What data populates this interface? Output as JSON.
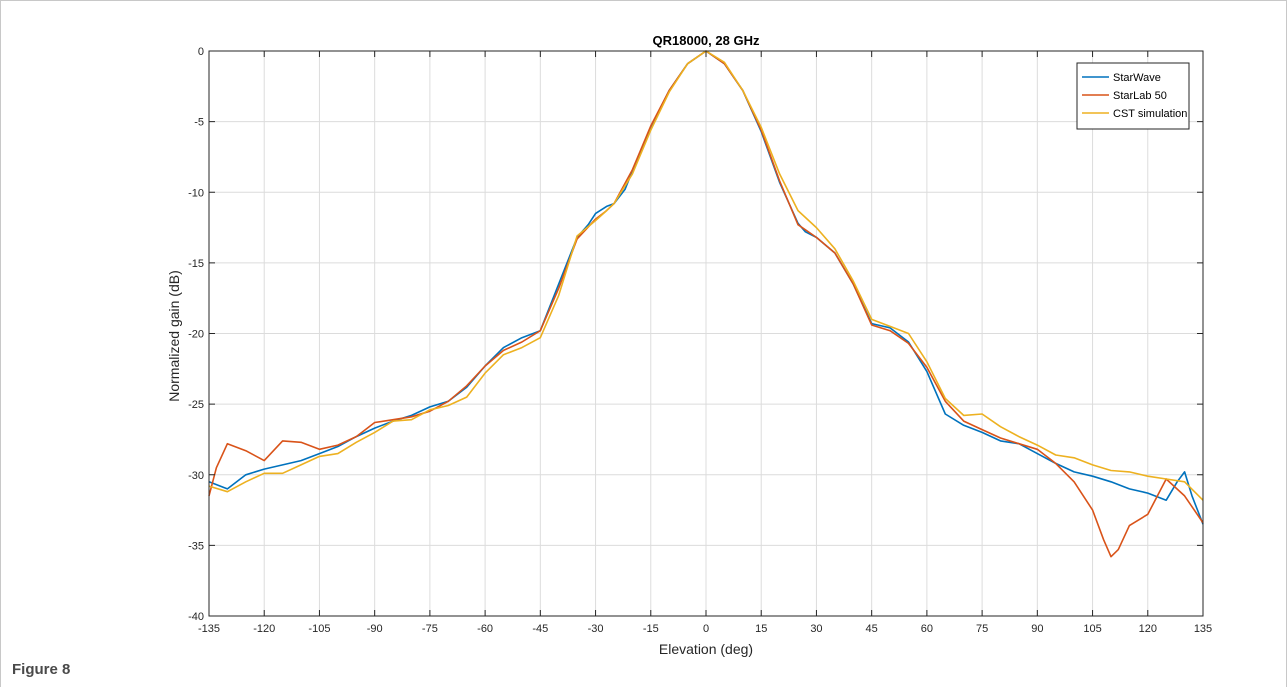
{
  "caption": "Figure 8",
  "chart_data": {
    "type": "line",
    "title": "QR18000, 28 GHz",
    "xlabel": "Elevation (deg)",
    "ylabel": "Normalized gain (dB)",
    "xlim": [
      -135,
      135
    ],
    "ylim": [
      -40,
      0
    ],
    "xticks": [
      -135,
      -120,
      -105,
      -90,
      -75,
      -60,
      -45,
      -30,
      -15,
      0,
      15,
      30,
      45,
      60,
      75,
      90,
      105,
      120,
      135
    ],
    "yticks": [
      0,
      -5,
      -10,
      -15,
      -20,
      -25,
      -30,
      -35,
      -40
    ],
    "grid": true,
    "legend_position": "top-right",
    "series": [
      {
        "name": "StarWave",
        "color": "#0072BD",
        "x": [
          -135,
          -130,
          -125,
          -120,
          -115,
          -110,
          -105,
          -100,
          -95,
          -90,
          -85,
          -80,
          -75,
          -70,
          -65,
          -60,
          -55,
          -50,
          -45,
          -40,
          -35,
          -32,
          -30,
          -27,
          -25,
          -22,
          -20,
          -15,
          -10,
          -5,
          0,
          5,
          10,
          15,
          20,
          25,
          27,
          30,
          35,
          40,
          45,
          50,
          55,
          60,
          65,
          70,
          75,
          80,
          85,
          90,
          95,
          100,
          105,
          110,
          115,
          120,
          125,
          128,
          130,
          132,
          135
        ],
        "y": [
          -30.5,
          -31,
          -30,
          -29.6,
          -29.3,
          -29,
          -28.5,
          -28,
          -27.3,
          -26.7,
          -26.2,
          -25.8,
          -25.2,
          -24.8,
          -23.8,
          -22.3,
          -21,
          -20.3,
          -19.8,
          -16.5,
          -13.2,
          -12.3,
          -11.5,
          -11,
          -10.8,
          -9.8,
          -8.5,
          -5.4,
          -2.8,
          -0.9,
          0,
          -0.9,
          -2.8,
          -5.7,
          -9.3,
          -12.2,
          -12.8,
          -13.2,
          -14.3,
          -16.5,
          -19.3,
          -19.6,
          -20.6,
          -22.7,
          -25.7,
          -26.5,
          -27,
          -27.6,
          -27.8,
          -28.5,
          -29.2,
          -29.8,
          -30.1,
          -30.5,
          -31,
          -31.3,
          -31.8,
          -30.5,
          -29.8,
          -31.5,
          -33.5
        ]
      },
      {
        "name": "StarLab 50",
        "color": "#D95319",
        "x": [
          -135,
          -133,
          -130,
          -125,
          -120,
          -115,
          -110,
          -105,
          -100,
          -95,
          -90,
          -85,
          -80,
          -75,
          -70,
          -65,
          -60,
          -55,
          -50,
          -45,
          -40,
          -35,
          -30,
          -27,
          -25,
          -20,
          -15,
          -10,
          -5,
          0,
          5,
          10,
          15,
          20,
          25,
          30,
          35,
          40,
          45,
          50,
          55,
          60,
          65,
          70,
          75,
          80,
          85,
          90,
          95,
          100,
          105,
          108,
          110,
          112,
          115,
          120,
          125,
          130,
          135
        ],
        "y": [
          -31.5,
          -29.5,
          -27.8,
          -28.3,
          -29,
          -27.6,
          -27.7,
          -28.2,
          -27.9,
          -27.3,
          -26.3,
          -26.1,
          -25.9,
          -25.5,
          -24.8,
          -23.7,
          -22.3,
          -21.2,
          -20.6,
          -19.8,
          -16.8,
          -13.3,
          -11.9,
          -11.3,
          -10.8,
          -8.4,
          -5.3,
          -2.8,
          -0.9,
          0,
          -0.9,
          -2.8,
          -5.6,
          -9.2,
          -12.3,
          -13.2,
          -14.3,
          -16.5,
          -19.4,
          -19.8,
          -20.7,
          -22.4,
          -24.8,
          -26.2,
          -26.8,
          -27.4,
          -27.8,
          -28.2,
          -29.2,
          -30.5,
          -32.5,
          -34.6,
          -35.8,
          -35.3,
          -33.6,
          -32.8,
          -30.3,
          -31.5,
          -33.4
        ]
      },
      {
        "name": "CST simulation",
        "color": "#EDB120",
        "x": [
          -135,
          -130,
          -125,
          -120,
          -115,
          -110,
          -105,
          -100,
          -95,
          -90,
          -85,
          -80,
          -75,
          -70,
          -65,
          -60,
          -55,
          -50,
          -45,
          -40,
          -35,
          -30,
          -27,
          -25,
          -20,
          -15,
          -10,
          -5,
          0,
          5,
          10,
          15,
          20,
          25,
          30,
          35,
          40,
          45,
          50,
          55,
          60,
          65,
          70,
          75,
          80,
          85,
          90,
          95,
          100,
          105,
          110,
          115,
          120,
          125,
          130,
          135
        ],
        "y": [
          -30.8,
          -31.2,
          -30.5,
          -29.9,
          -29.9,
          -29.3,
          -28.7,
          -28.5,
          -27.7,
          -27,
          -26.2,
          -26.1,
          -25.4,
          -25.1,
          -24.5,
          -22.8,
          -21.5,
          -21,
          -20.3,
          -17.3,
          -13.1,
          -12,
          -11.3,
          -10.8,
          -8.7,
          -5.6,
          -2.9,
          -0.9,
          0,
          -0.8,
          -2.8,
          -5.4,
          -8.7,
          -11.3,
          -12.5,
          -14,
          -16.3,
          -19,
          -19.5,
          -20,
          -22,
          -24.6,
          -25.8,
          -25.7,
          -26.6,
          -27.3,
          -27.9,
          -28.6,
          -28.8,
          -29.3,
          -29.7,
          -29.8,
          -30.1,
          -30.3,
          -30.5,
          -31.8
        ]
      }
    ]
  }
}
